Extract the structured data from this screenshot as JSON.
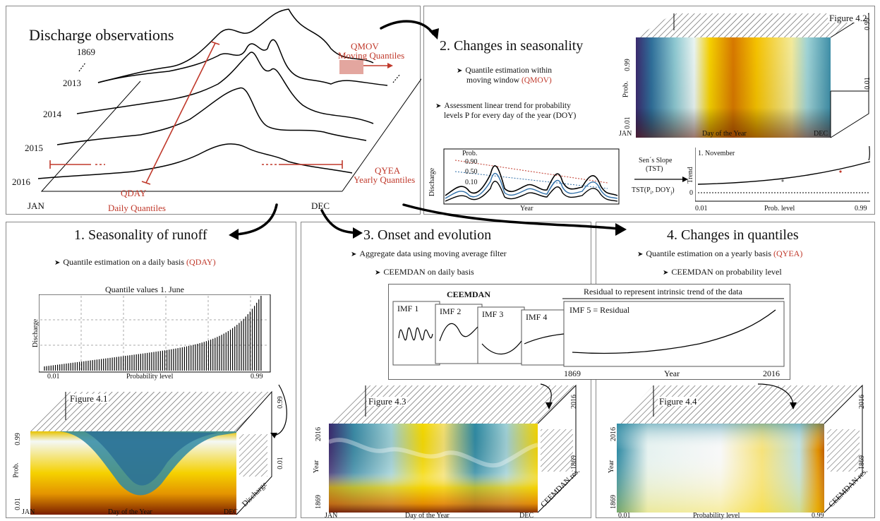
{
  "panel_obs": {
    "title": "Discharge observations",
    "years": [
      "1869",
      "2013",
      "2014",
      "2015",
      "2016"
    ],
    "ellipsis": "...",
    "x_start": "JAN",
    "x_end": "DEC",
    "qmov_label": "QMOV",
    "qmov_desc": "Moving Quantiles",
    "qyea_label": "QYEA",
    "qyea_desc": "Yearly Quantiles",
    "qday_label": "QDAY",
    "qday_desc": "Daily Quantiles"
  },
  "panel2": {
    "title": "2. Changes in seasonality",
    "bullet1_a": "Quantile estimation within",
    "bullet1_b": "moving window",
    "bullet1_tag": "(QMOV)",
    "bullet2_a": "Assessment linear trend for probability",
    "bullet2_b": "levels P for every day of the year (DOY)",
    "figure_label": "Figure 4.2",
    "prob_axis": "Prob.",
    "tick_top": "0.99",
    "tick_bottom": "0.01",
    "x_start": "JAN",
    "x_mid": "Day of the Year",
    "x_end": "DEC",
    "mini_ylabel": "Discharge",
    "mini_xlabel": "Year",
    "mini_prob": "Prob.",
    "mini_q90": "0.90",
    "mini_q50": "0.50",
    "mini_q10": "0.10",
    "sens_title": "Sen´s Slope",
    "sens_abbr": "(TST)",
    "tst_formula": "TST(P",
    "tst_sub_i": "i",
    "tst_mid": ", DOY",
    "tst_sub_j": "j",
    "tst_end": ")",
    "trend_title": "1. November",
    "trend_ylabel": "Trend",
    "trend_zero": "0",
    "trend_xmin": "0.01",
    "trend_xlabel": "Prob. level",
    "trend_xmax": "0.99"
  },
  "panel1": {
    "title": "1. Seasonality of runoff",
    "bullet": "Quantile estimation on a daily basis",
    "bullet_tag": "(QDAY)",
    "bar_title": "Quantile values 1. June",
    "bar_ylabel": "Discharge",
    "bar_xmin": "0.01",
    "bar_xlabel": "Probability level",
    "bar_xmax": "0.99",
    "figure_label": "Figure 4.1",
    "prob_axis": "Prob.",
    "tick_top": "0.99",
    "tick_bottom": "0.01",
    "side_top": "0.99",
    "side_bottom": "0.01",
    "side_label": "Discharge",
    "x_start": "JAN",
    "x_mid": "Day of the Year",
    "x_end": "DEC"
  },
  "panel3": {
    "title": "3. Onset and evolution",
    "bullet1": "Aggregate data using moving average filter",
    "bullet2": "CEEMDAN on daily basis",
    "ceemdan_title": "CEEMDAN",
    "imf1": "IMF 1",
    "imf2": "IMF 2",
    "imf3": "IMF 3",
    "imf4": "IMF 4",
    "imf5": "IMF 5 = Residual",
    "residual_title": "Residual to represent intrinsic trend of the data",
    "res_xmin": "1869",
    "res_xlabel": "Year",
    "res_xmax": "2016",
    "figure_label": "Figure 4.3",
    "year_axis": "Year",
    "tick_top": "2016",
    "tick_bottom": "1869",
    "side_top": "2016",
    "side_bottom": "1869",
    "side_label": "CEEMDAN res.",
    "x_start": "JAN",
    "x_mid": "Day of the Year",
    "x_end": "DEC"
  },
  "panel4": {
    "title": "4. Changes in quantiles",
    "bullet1": "Quantile estimation on a yearly basis",
    "bullet1_tag": "(QYEA)",
    "bullet2": "CEEMDAN on probability level",
    "figure_label": "Figure 4.4",
    "year_axis": "Year",
    "tick_top": "2016",
    "tick_bottom": "1869",
    "side_top": "2016",
    "side_bottom": "1869",
    "side_label": "CEEMDAN res.",
    "x_start": "0.01",
    "x_mid": "Probability level",
    "x_end": "0.99"
  },
  "colors": {
    "accent_red": "#c0392b",
    "panel_border": "#888888",
    "heat_blue_dark": "#3b2a6e",
    "heat_teal": "#2f8fa3",
    "heat_white": "#f4f8f6",
    "heat_yellow": "#f5d000",
    "heat_orange": "#e08a00",
    "heat_brown": "#7a1e00"
  }
}
